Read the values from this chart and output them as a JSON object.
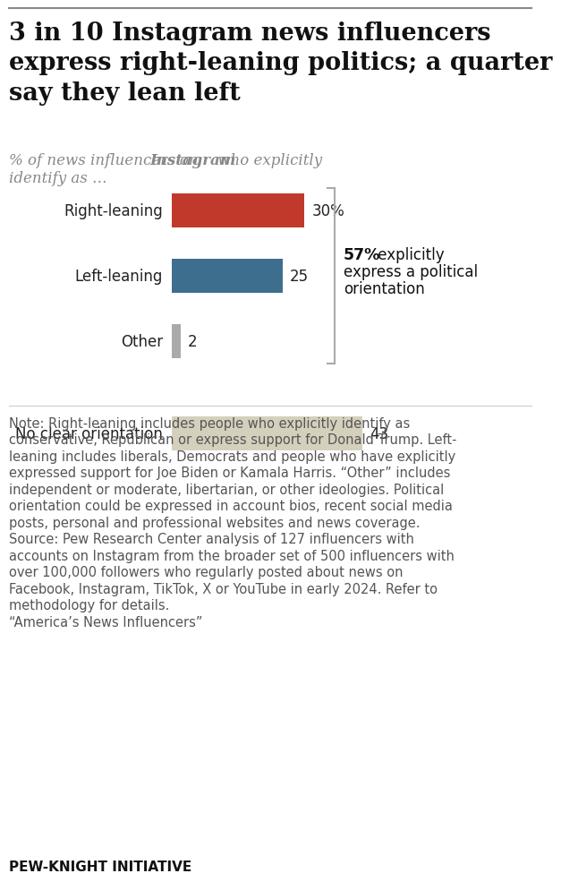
{
  "title": "3 in 10 Instagram news influencers\nexpress right-leaning politics; a quarter\nsay they lean left",
  "subtitle_part1": "% of news influencers on ",
  "subtitle_bold": "Instagram",
  "subtitle_part2": " who explicitly\nidentify as …",
  "categories": [
    "Right-leaning",
    "Left-leaning",
    "Other",
    "No clear orientation"
  ],
  "values": [
    30,
    25,
    2,
    43
  ],
  "bar_colors": [
    "#c0392b",
    "#3d6e8e",
    "#aaaaaa",
    "#d5d0bc"
  ],
  "value_labels": [
    "30%",
    "25",
    "2",
    "43"
  ],
  "annotation_pct": "57%",
  "annotation_text": " explicitly\nexpress a political\norientation",
  "note_text": "Note: Right-leaning includes people who explicitly identify as\nconservative, Republican or express support for Donald Trump. Left-\nleaning includes liberals, Democrats and people who have explicitly\nexpressed support for Joe Biden or Kamala Harris. “Other” includes\nindependent or moderate, libertarian, or other ideologies. Political\norientation could be expressed in account bios, recent social media\nposts, personal and professional websites and news coverage.\nSource: Pew Research Center analysis of 127 influencers with\naccounts on Instagram from the broader set of 500 influencers with\nover 100,000 followers who regularly posted about news on\nFacebook, Instagram, TikTok, X or YouTube in early 2024. Refer to\nmethodology for details.\n“America’s News Influencers”",
  "footer_text": "PEW-KNIGHT INITIATIVE",
  "bg_color": "#ffffff",
  "text_color": "#222222",
  "note_color": "#555555",
  "subtitle_color": "#888888",
  "bracket_color": "#aaaaaa",
  "sep_color": "#cccccc",
  "title_fontsize": 19.5,
  "subtitle_fontsize": 12,
  "bar_label_fontsize": 12,
  "value_label_fontsize": 12,
  "annot_fontsize": 12,
  "note_fontsize": 10.5,
  "footer_fontsize": 11
}
